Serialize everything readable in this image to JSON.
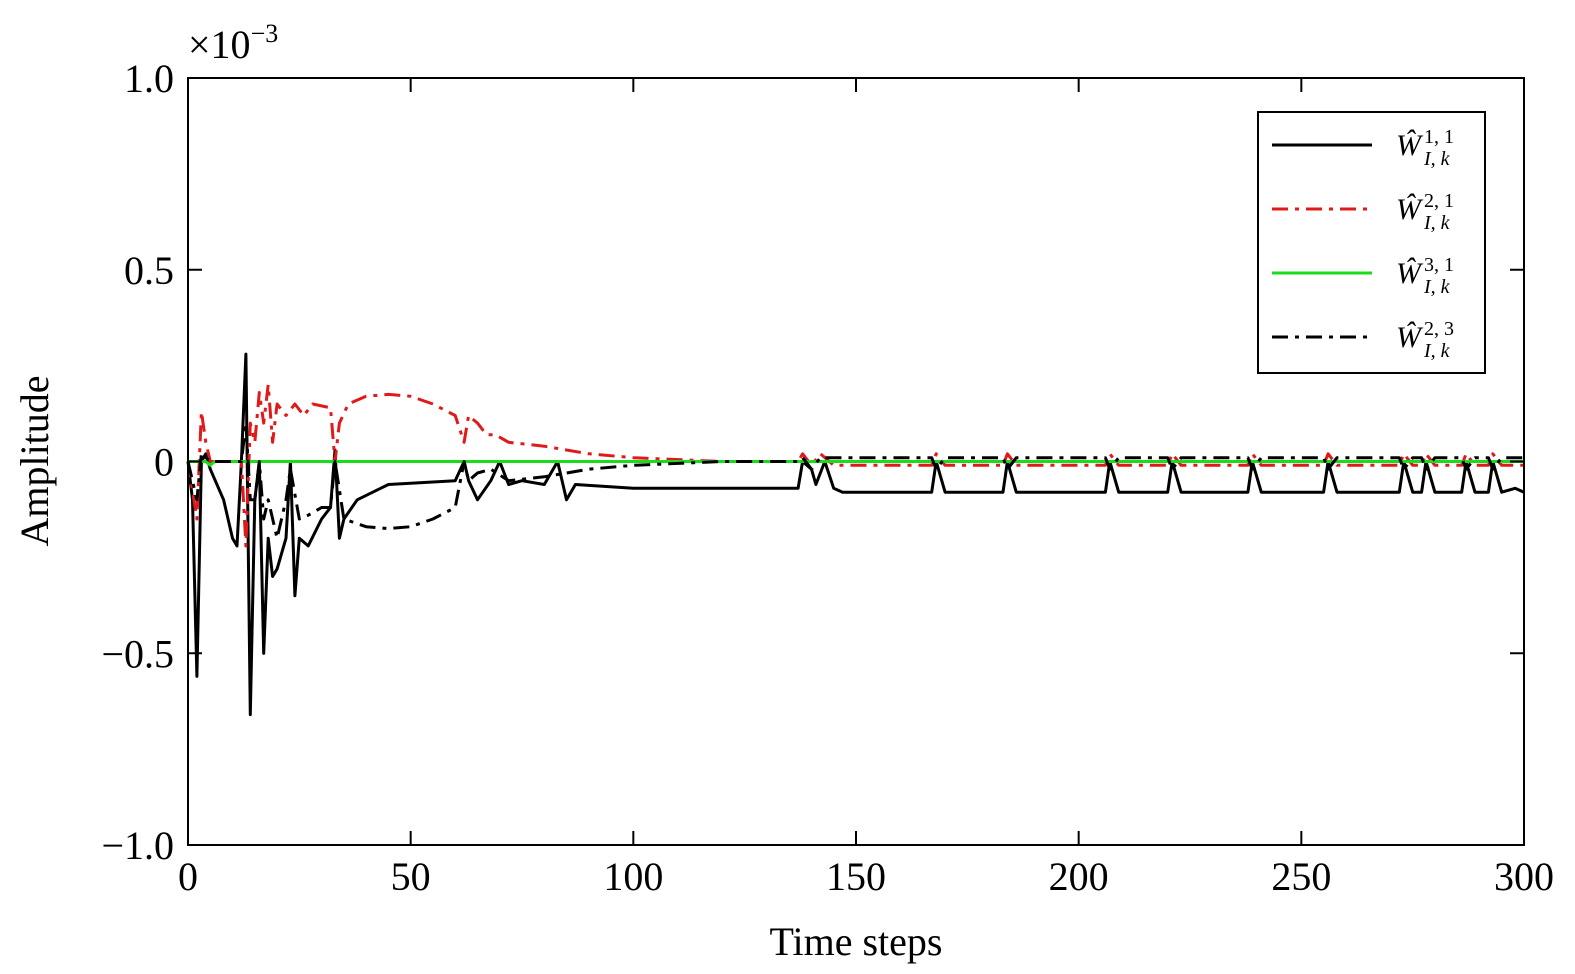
{
  "chart_data": {
    "type": "line",
    "xlabel": "Time steps",
    "ylabel": "Amplitude",
    "axis_multiplier": {
      "base": "×10",
      "exponent": "−3"
    },
    "xlim": [
      0,
      300
    ],
    "xticks": [
      0,
      50,
      100,
      150,
      200,
      250,
      300
    ],
    "ylim": [
      -1,
      1
    ],
    "yticks": [
      {
        "value": -1,
        "label": "−1.0"
      },
      {
        "value": -0.5,
        "label": "−0.5"
      },
      0,
      0.5,
      {
        "value": 1,
        "label": "1.0"
      }
    ],
    "grid": false,
    "legend": "upper right",
    "series": [
      {
        "name": "Ŵ",
        "superscript": "1, 1",
        "subscript": "I, k",
        "color": "#000000",
        "linestyle": "solid",
        "x": [
          0,
          1,
          2,
          3,
          4,
          5,
          8,
          10,
          11,
          12,
          13,
          14,
          15,
          16,
          17,
          18,
          19,
          20,
          22,
          23,
          24,
          25,
          27,
          30,
          32,
          33,
          34,
          35,
          38,
          45,
          60,
          62,
          63,
          65,
          68,
          70,
          72,
          75,
          80,
          83,
          85,
          87,
          100,
          137,
          138,
          140,
          141,
          143,
          145,
          147,
          167,
          168,
          170,
          183,
          184,
          186,
          206,
          207,
          209,
          220,
          221,
          223,
          238,
          239,
          241,
          255,
          256,
          258,
          272,
          273,
          275,
          277,
          278,
          280,
          286,
          287,
          289,
          292,
          293,
          295,
          298,
          300
        ],
        "values": [
          0,
          -0.1,
          -0.56,
          0,
          0.02,
          -0.02,
          -0.1,
          -0.2,
          -0.22,
          0,
          0.28,
          -0.66,
          -0.1,
          0,
          -0.5,
          -0.2,
          -0.3,
          -0.28,
          -0.2,
          0,
          -0.35,
          -0.2,
          -0.22,
          -0.15,
          -0.12,
          0.03,
          -0.2,
          -0.15,
          -0.1,
          -0.06,
          -0.05,
          0,
          -0.05,
          -0.1,
          -0.05,
          0,
          -0.06,
          -0.05,
          -0.06,
          0,
          -0.1,
          -0.06,
          -0.07,
          -0.07,
          0,
          -0.02,
          -0.06,
          0,
          -0.07,
          -0.08,
          -0.08,
          0,
          -0.08,
          -0.08,
          0,
          -0.08,
          -0.08,
          0,
          -0.08,
          -0.08,
          0,
          -0.08,
          -0.08,
          0,
          -0.08,
          -0.08,
          0,
          -0.08,
          -0.08,
          0,
          -0.08,
          -0.08,
          0,
          -0.08,
          -0.08,
          0,
          -0.08,
          -0.08,
          0,
          -0.08,
          -0.07,
          -0.08
        ]
      },
      {
        "name": "Ŵ",
        "superscript": "2, 1",
        "subscript": "I, k",
        "color": "#e0191a",
        "linestyle": "dashdot",
        "x": [
          0,
          2,
          3,
          4,
          5,
          12,
          13,
          14,
          15,
          16,
          17,
          18,
          19,
          20,
          22,
          24,
          26,
          28,
          32,
          33,
          34,
          36,
          40,
          45,
          50,
          55,
          60,
          62,
          63,
          65,
          67,
          69,
          72,
          80,
          90,
          100,
          120,
          137,
          138,
          140,
          142,
          145,
          167,
          168,
          170,
          183,
          184,
          186,
          206,
          207,
          209,
          220,
          221,
          223,
          238,
          239,
          241,
          255,
          256,
          258,
          272,
          273,
          275,
          277,
          278,
          280,
          286,
          287,
          289,
          292,
          293,
          295,
          300
        ],
        "values": [
          0,
          -0.15,
          0.13,
          0.05,
          0,
          0,
          -0.22,
          0.1,
          0.05,
          0.18,
          0.1,
          0.2,
          0.05,
          0.15,
          0.12,
          0.15,
          0.12,
          0.15,
          0.14,
          0,
          0.1,
          0.15,
          0.17,
          0.175,
          0.17,
          0.15,
          0.12,
          0.05,
          0.12,
          0.1,
          0.07,
          0.07,
          0.05,
          0.04,
          0.02,
          0.01,
          0,
          0,
          0.02,
          -0.01,
          0.02,
          -0.01,
          -0.01,
          0.02,
          -0.01,
          -0.01,
          0.02,
          -0.01,
          -0.01,
          0.02,
          -0.01,
          -0.01,
          0.02,
          -0.01,
          -0.01,
          0.02,
          -0.01,
          -0.01,
          0.02,
          -0.01,
          -0.01,
          0.02,
          -0.01,
          -0.01,
          0.02,
          -0.01,
          -0.01,
          0.02,
          -0.01,
          -0.01,
          0.02,
          -0.01,
          -0.01
        ]
      },
      {
        "name": "Ŵ",
        "superscript": "3, 1",
        "subscript": "I, k",
        "color": "#1adc1a",
        "linestyle": "solid",
        "x": [
          0,
          4,
          5,
          6,
          300
        ],
        "values": [
          0,
          0,
          -0.01,
          0,
          0
        ]
      },
      {
        "name": "Ŵ",
        "superscript": "2, 3",
        "subscript": "I, k",
        "color": "#000000",
        "linestyle": "dashdot",
        "x": [
          0,
          2,
          3,
          5,
          12,
          13,
          14,
          15,
          16,
          17,
          18,
          20,
          22,
          23,
          25,
          27,
          30,
          32,
          33,
          35,
          40,
          45,
          50,
          55,
          60,
          62,
          63,
          65,
          68,
          72,
          80,
          90,
          100,
          120,
          137,
          138,
          140,
          142,
          145,
          167,
          168,
          170,
          183,
          184,
          186,
          206,
          207,
          209,
          220,
          221,
          223,
          238,
          239,
          241,
          255,
          256,
          258,
          272,
          273,
          275,
          277,
          278,
          280,
          286,
          287,
          289,
          292,
          293,
          295,
          300
        ],
        "values": [
          0,
          -0.1,
          0.02,
          0,
          0,
          0.1,
          -0.1,
          -0.1,
          0,
          -0.15,
          -0.1,
          -0.2,
          -0.1,
          -0.02,
          -0.15,
          -0.14,
          -0.12,
          -0.12,
          0,
          -0.15,
          -0.17,
          -0.175,
          -0.17,
          -0.15,
          -0.12,
          0,
          -0.05,
          -0.03,
          -0.02,
          -0.05,
          -0.04,
          -0.02,
          -0.01,
          0,
          0,
          0.01,
          -0.02,
          0.01,
          0.01,
          0.01,
          -0.02,
          0.01,
          0.01,
          -0.02,
          0.01,
          0.01,
          -0.02,
          0.01,
          0.01,
          -0.02,
          0.01,
          0.01,
          -0.02,
          0.01,
          0.01,
          -0.02,
          0.01,
          0.01,
          -0.02,
          0.01,
          0.01,
          -0.02,
          0.01,
          0.01,
          -0.02,
          0.01,
          0.01,
          -0.02,
          0.01,
          0.01
        ]
      }
    ]
  }
}
